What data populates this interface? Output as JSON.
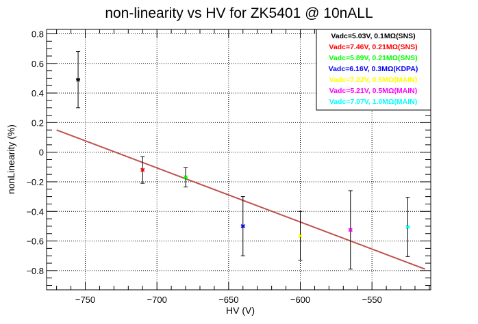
{
  "chart_data": {
    "type": "scatter",
    "title": "non-linearity vs HV for ZK5401 @ 10nALL",
    "xlabel": "HV (V)",
    "ylabel": "nonLinearity (%)",
    "xlim": [
      -777,
      -509
    ],
    "ylim": [
      -0.93,
      0.83
    ],
    "x_ticks": [
      -750,
      -700,
      -650,
      -600,
      -550
    ],
    "x_tick_labels": [
      "−750",
      "−700",
      "−650",
      "−600",
      "−550"
    ],
    "y_ticks": [
      -0.8,
      -0.6,
      -0.4,
      -0.2,
      0,
      0.2,
      0.4,
      0.6,
      0.8
    ],
    "y_tick_labels": [
      "−0.8",
      "−0.6",
      "−0.4",
      "−0.2",
      "0",
      "0.2",
      "0.4",
      "0.6",
      "0.8"
    ],
    "grid": true,
    "legend_position": "top-right",
    "series": [
      {
        "name": "Vadc=5.03V, 0.1MΩ(SNS)",
        "color": "#000000",
        "points": [
          {
            "x": -755,
            "y": 0.49,
            "err": 0.19
          }
        ]
      },
      {
        "name": "Vadc=7.46V, 0.21MΩ(SNS)",
        "color": "#ff0000",
        "points": [
          {
            "x": -710,
            "y": -0.12,
            "err": 0.09
          }
        ]
      },
      {
        "name": "Vadc=5.89V, 0.21MΩ(SNS)",
        "color": "#00ff00",
        "points": [
          {
            "x": -680,
            "y": -0.17,
            "err": 0.065
          }
        ]
      },
      {
        "name": "Vadc=6.16V, 0.3MΩ(KDPA)",
        "color": "#0000ff",
        "points": [
          {
            "x": -640,
            "y": -0.5,
            "err": 0.2
          }
        ]
      },
      {
        "name": "Vadc=7.22V, 0.5MΩ(MAIN)",
        "color": "#ffff00",
        "points": [
          {
            "x": -600,
            "y": -0.565,
            "err": 0.165
          }
        ]
      },
      {
        "name": "Vadc=5.21V, 0.5MΩ(MAIN)",
        "color": "#ff00ff",
        "points": [
          {
            "x": -565,
            "y": -0.525,
            "err": 0.265
          }
        ]
      },
      {
        "name": "Vadc=7.07V, 1.0MΩ(MAIN)",
        "color": "#00ffff",
        "points": [
          {
            "x": -525,
            "y": -0.505,
            "err": 0.2
          }
        ]
      }
    ],
    "fit_line": {
      "color": "#c0504d",
      "x": [
        -770,
        -513
      ],
      "y": [
        0.15,
        -0.79
      ]
    }
  }
}
